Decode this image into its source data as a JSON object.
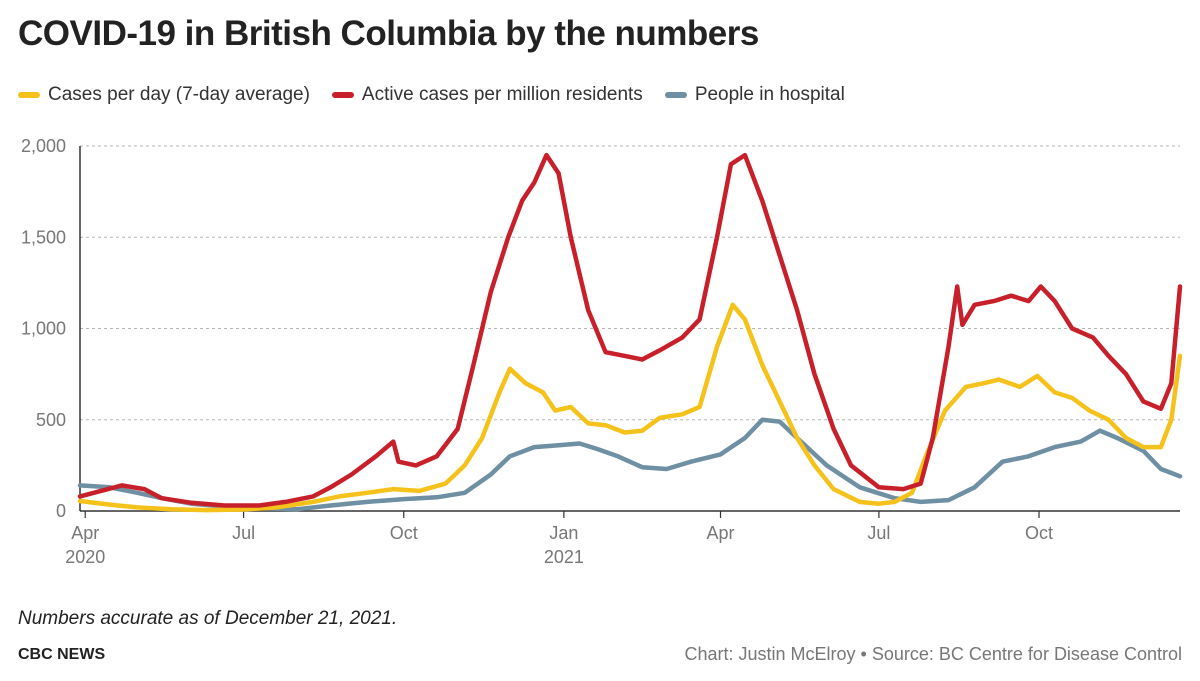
{
  "title": "COVID-19 in British Columbia by the numbers",
  "note": "Numbers accurate as of  December 21, 2021.",
  "brand": "CBC NEWS",
  "credit": "Chart: Justin McElroy • Source: BC Centre for Disease Control",
  "colors": {
    "cases": "#f5c21b",
    "active": "#c8202a",
    "hospital": "#6f8fa3"
  },
  "chart_data": {
    "type": "line",
    "ylim": [
      0,
      2000
    ],
    "yticks": [
      0,
      500,
      1000,
      1500,
      2000
    ],
    "yticklabels": [
      "0",
      "500",
      "1,000",
      "1,500",
      "2,000"
    ],
    "xlim": [
      "2020-03-29",
      "2021-12-21"
    ],
    "xticks": [
      {
        "date": "2020-04-01",
        "label": "Apr",
        "sublabel": "2020"
      },
      {
        "date": "2020-07-01",
        "label": "Jul",
        "sublabel": ""
      },
      {
        "date": "2020-10-01",
        "label": "Oct",
        "sublabel": ""
      },
      {
        "date": "2021-01-01",
        "label": "Jan",
        "sublabel": "2021"
      },
      {
        "date": "2021-04-01",
        "label": "Apr",
        "sublabel": ""
      },
      {
        "date": "2021-07-01",
        "label": "Jul",
        "sublabel": ""
      },
      {
        "date": "2021-10-01",
        "label": "Oct",
        "sublabel": ""
      }
    ],
    "grid": true,
    "legend_position": "top-left",
    "series": [
      {
        "name": "Cases per day (7-day average)",
        "color": "#f5c21b",
        "points": [
          [
            "2020-03-29",
            55
          ],
          [
            "2020-04-15",
            35
          ],
          [
            "2020-05-01",
            20
          ],
          [
            "2020-05-20",
            10
          ],
          [
            "2020-06-10",
            5
          ],
          [
            "2020-07-01",
            8
          ],
          [
            "2020-07-20",
            20
          ],
          [
            "2020-08-10",
            50
          ],
          [
            "2020-08-25",
            80
          ],
          [
            "2020-09-10",
            100
          ],
          [
            "2020-09-25",
            120
          ],
          [
            "2020-10-10",
            110
          ],
          [
            "2020-10-25",
            150
          ],
          [
            "2020-11-05",
            250
          ],
          [
            "2020-11-15",
            400
          ],
          [
            "2020-11-25",
            650
          ],
          [
            "2020-12-01",
            780
          ],
          [
            "2020-12-10",
            700
          ],
          [
            "2020-12-20",
            650
          ],
          [
            "2020-12-27",
            550
          ],
          [
            "2021-01-05",
            570
          ],
          [
            "2021-01-15",
            480
          ],
          [
            "2021-01-25",
            470
          ],
          [
            "2021-02-05",
            430
          ],
          [
            "2021-02-15",
            440
          ],
          [
            "2021-02-25",
            510
          ],
          [
            "2021-03-10",
            530
          ],
          [
            "2021-03-20",
            570
          ],
          [
            "2021-03-30",
            900
          ],
          [
            "2021-04-08",
            1130
          ],
          [
            "2021-04-15",
            1050
          ],
          [
            "2021-04-25",
            800
          ],
          [
            "2021-05-05",
            600
          ],
          [
            "2021-05-15",
            400
          ],
          [
            "2021-05-25",
            250
          ],
          [
            "2021-06-05",
            120
          ],
          [
            "2021-06-20",
            50
          ],
          [
            "2021-07-01",
            40
          ],
          [
            "2021-07-10",
            50
          ],
          [
            "2021-07-20",
            100
          ],
          [
            "2021-07-28",
            300
          ],
          [
            "2021-08-08",
            550
          ],
          [
            "2021-08-20",
            680
          ],
          [
            "2021-08-30",
            700
          ],
          [
            "2021-09-08",
            720
          ],
          [
            "2021-09-20",
            680
          ],
          [
            "2021-09-30",
            740
          ],
          [
            "2021-10-10",
            650
          ],
          [
            "2021-10-20",
            620
          ],
          [
            "2021-10-30",
            550
          ],
          [
            "2021-11-10",
            500
          ],
          [
            "2021-11-20",
            400
          ],
          [
            "2021-11-30",
            350
          ],
          [
            "2021-12-10",
            350
          ],
          [
            "2021-12-16",
            500
          ],
          [
            "2021-12-21",
            850
          ]
        ]
      },
      {
        "name": "Active cases per million residents",
        "color": "#c8202a",
        "points": [
          [
            "2020-03-29",
            80
          ],
          [
            "2020-04-10",
            110
          ],
          [
            "2020-04-22",
            140
          ],
          [
            "2020-05-05",
            120
          ],
          [
            "2020-05-15",
            70
          ],
          [
            "2020-06-01",
            45
          ],
          [
            "2020-06-20",
            30
          ],
          [
            "2020-07-10",
            30
          ],
          [
            "2020-07-25",
            50
          ],
          [
            "2020-08-10",
            80
          ],
          [
            "2020-08-20",
            130
          ],
          [
            "2020-09-01",
            200
          ],
          [
            "2020-09-15",
            300
          ],
          [
            "2020-09-25",
            380
          ],
          [
            "2020-09-28",
            270
          ],
          [
            "2020-10-08",
            250
          ],
          [
            "2020-10-20",
            300
          ],
          [
            "2020-11-01",
            450
          ],
          [
            "2020-11-10",
            800
          ],
          [
            "2020-11-20",
            1200
          ],
          [
            "2020-11-30",
            1500
          ],
          [
            "2020-12-08",
            1700
          ],
          [
            "2020-12-15",
            1800
          ],
          [
            "2020-12-22",
            1950
          ],
          [
            "2020-12-29",
            1850
          ],
          [
            "2021-01-05",
            1500
          ],
          [
            "2021-01-15",
            1100
          ],
          [
            "2021-01-25",
            870
          ],
          [
            "2021-02-05",
            850
          ],
          [
            "2021-02-15",
            830
          ],
          [
            "2021-02-25",
            880
          ],
          [
            "2021-03-10",
            950
          ],
          [
            "2021-03-20",
            1050
          ],
          [
            "2021-03-30",
            1500
          ],
          [
            "2021-04-07",
            1900
          ],
          [
            "2021-04-15",
            1950
          ],
          [
            "2021-04-25",
            1700
          ],
          [
            "2021-05-05",
            1400
          ],
          [
            "2021-05-15",
            1100
          ],
          [
            "2021-05-25",
            750
          ],
          [
            "2021-06-05",
            450
          ],
          [
            "2021-06-15",
            250
          ],
          [
            "2021-07-01",
            130
          ],
          [
            "2021-07-15",
            120
          ],
          [
            "2021-07-25",
            150
          ],
          [
            "2021-08-01",
            400
          ],
          [
            "2021-08-10",
            900
          ],
          [
            "2021-08-15",
            1230
          ],
          [
            "2021-08-18",
            1020
          ],
          [
            "2021-08-25",
            1130
          ],
          [
            "2021-09-05",
            1150
          ],
          [
            "2021-09-15",
            1180
          ],
          [
            "2021-09-25",
            1150
          ],
          [
            "2021-10-02",
            1230
          ],
          [
            "2021-10-10",
            1150
          ],
          [
            "2021-10-20",
            1000
          ],
          [
            "2021-11-01",
            950
          ],
          [
            "2021-11-10",
            850
          ],
          [
            "2021-11-20",
            750
          ],
          [
            "2021-11-30",
            600
          ],
          [
            "2021-12-10",
            560
          ],
          [
            "2021-12-16",
            700
          ],
          [
            "2021-12-21",
            1230
          ]
        ]
      },
      {
        "name": "People in hospital",
        "color": "#6f8fa3",
        "points": [
          [
            "2020-03-29",
            140
          ],
          [
            "2020-04-15",
            130
          ],
          [
            "2020-05-01",
            100
          ],
          [
            "2020-05-15",
            70
          ],
          [
            "2020-06-01",
            40
          ],
          [
            "2020-06-20",
            25
          ],
          [
            "2020-07-10",
            15
          ],
          [
            "2020-08-01",
            10
          ],
          [
            "2020-08-20",
            30
          ],
          [
            "2020-09-10",
            50
          ],
          [
            "2020-10-01",
            65
          ],
          [
            "2020-10-20",
            75
          ],
          [
            "2020-11-05",
            100
          ],
          [
            "2020-11-20",
            200
          ],
          [
            "2020-12-01",
            300
          ],
          [
            "2020-12-15",
            350
          ],
          [
            "2020-12-29",
            360
          ],
          [
            "2021-01-10",
            370
          ],
          [
            "2021-01-20",
            340
          ],
          [
            "2021-02-01",
            300
          ],
          [
            "2021-02-15",
            240
          ],
          [
            "2021-03-01",
            230
          ],
          [
            "2021-03-15",
            270
          ],
          [
            "2021-04-01",
            310
          ],
          [
            "2021-04-15",
            400
          ],
          [
            "2021-04-25",
            500
          ],
          [
            "2021-05-05",
            490
          ],
          [
            "2021-05-15",
            400
          ],
          [
            "2021-06-01",
            250
          ],
          [
            "2021-06-20",
            130
          ],
          [
            "2021-07-10",
            70
          ],
          [
            "2021-07-25",
            50
          ],
          [
            "2021-08-10",
            60
          ],
          [
            "2021-08-25",
            130
          ],
          [
            "2021-09-10",
            270
          ],
          [
            "2021-09-25",
            300
          ],
          [
            "2021-10-10",
            350
          ],
          [
            "2021-10-25",
            380
          ],
          [
            "2021-11-05",
            440
          ],
          [
            "2021-11-15",
            400
          ],
          [
            "2021-11-30",
            330
          ],
          [
            "2021-12-10",
            230
          ],
          [
            "2021-12-21",
            190
          ]
        ]
      }
    ]
  }
}
